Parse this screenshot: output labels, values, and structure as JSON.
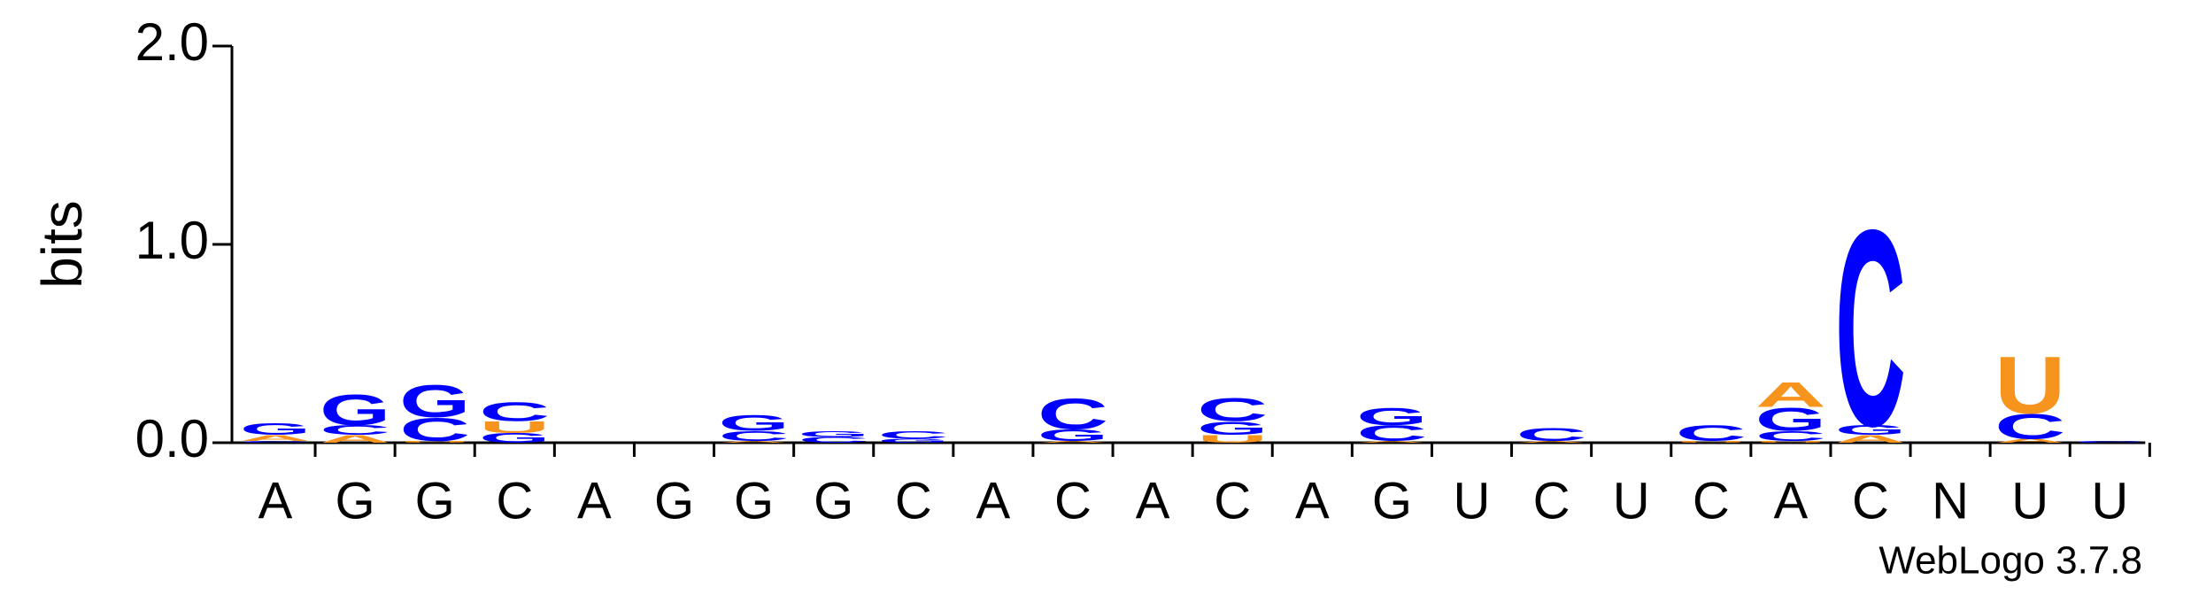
{
  "chart_data": {
    "type": "logo",
    "ylabel": "bits",
    "footer": "WebLogo 3.7.8",
    "categories": [
      "A",
      "G",
      "G",
      "C",
      "A",
      "G",
      "G",
      "G",
      "C",
      "A",
      "C",
      "A",
      "C",
      "A",
      "G",
      "U",
      "C",
      "U",
      "C",
      "A",
      "C",
      "N",
      "U",
      "U"
    ],
    "series": [
      {
        "name": "A",
        "color": "#f7941d",
        "values": [
          0.03,
          0.04,
          0,
          0,
          0,
          0,
          0.01,
          0,
          0,
          0,
          0.01,
          0,
          0,
          0,
          0.01,
          0,
          0.01,
          0,
          0,
          0.13,
          0.04,
          0,
          0.02,
          0
        ]
      },
      {
        "name": "C",
        "color": "#0000ff",
        "values": [
          0.01,
          0.05,
          0.12,
          0.1,
          0,
          0,
          0.05,
          0.03,
          0.04,
          0,
          0.16,
          0,
          0.12,
          0,
          0.08,
          0,
          0.07,
          0,
          0.08,
          0.05,
          1.03,
          0,
          0.13,
          0.01
        ]
      },
      {
        "name": "G",
        "color": "#0000ff",
        "values": [
          0.06,
          0.16,
          0.17,
          0.05,
          0,
          0,
          0.08,
          0.03,
          0.02,
          0,
          0.06,
          0,
          0.07,
          0,
          0.09,
          0,
          0,
          0,
          0,
          0.12,
          0.05,
          0,
          0,
          0
        ]
      },
      {
        "name": "U",
        "color": "#f7941d",
        "values": [
          0,
          0,
          0.01,
          0.06,
          0,
          0,
          0,
          0,
          0,
          0,
          0,
          0,
          0.04,
          0,
          0,
          0,
          0,
          0,
          0.01,
          0.01,
          0,
          0,
          0.3,
          0
        ]
      }
    ],
    "ylim": [
      0,
      2
    ],
    "yticks": [
      {
        "value": 0,
        "label": "0.0"
      },
      {
        "value": 1,
        "label": "1.0"
      },
      {
        "value": 2,
        "label": "2.0"
      }
    ]
  }
}
